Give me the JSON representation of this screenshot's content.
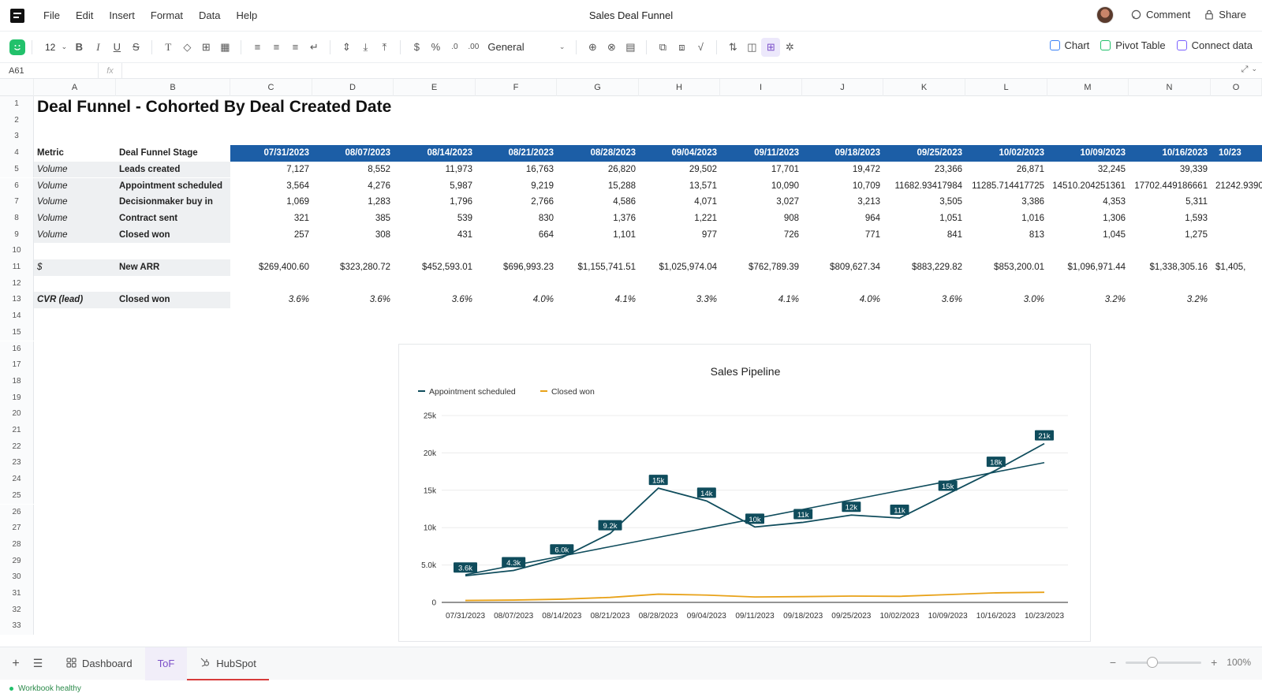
{
  "app": {
    "doc_title": "Sales Deal Funnel",
    "menu": [
      "File",
      "Edit",
      "Insert",
      "Format",
      "Data",
      "Help"
    ],
    "comment_label": "Comment",
    "share_label": "Share"
  },
  "toolbar": {
    "font_size": "12",
    "number_format": "General",
    "chart_label": "Chart",
    "pivot_label": "Pivot Table",
    "connect_label": "Connect data"
  },
  "formula_bar": {
    "cell_ref": "A61",
    "fx": "fx",
    "value": ""
  },
  "columns": [
    "A",
    "B",
    "C",
    "D",
    "E",
    "F",
    "G",
    "H",
    "I",
    "J",
    "K",
    "L",
    "M",
    "N",
    "O"
  ],
  "sheet": {
    "title": "Deal Funnel - Cohorted By Deal Created Date",
    "header_metric": "Metric",
    "header_stage": "Deal Funnel Stage",
    "dates": [
      "07/31/2023",
      "08/07/2023",
      "08/14/2023",
      "08/21/2023",
      "08/28/2023",
      "09/04/2023",
      "09/11/2023",
      "09/18/2023",
      "09/25/2023",
      "10/02/2023",
      "10/09/2023",
      "10/16/2023",
      "10/23"
    ],
    "rows": [
      {
        "row": 5,
        "metric": "Volume",
        "stage": "Leads created",
        "values": [
          "7,127",
          "8,552",
          "11,973",
          "16,763",
          "26,820",
          "29,502",
          "17,701",
          "19,472",
          "23,366",
          "26,871",
          "32,245",
          "39,339",
          ""
        ]
      },
      {
        "row": 6,
        "metric": "Volume",
        "stage": "Appointment scheduled",
        "values": [
          "3,564",
          "4,276",
          "5,987",
          "9,219",
          "15,288",
          "13,571",
          "10,090",
          "10,709",
          "11682.93417984",
          "11285.714417725",
          "14510.204251361",
          "17702.449186661",
          "21242.9390"
        ]
      },
      {
        "row": 7,
        "metric": "Volume",
        "stage": "Decisionmaker buy in",
        "values": [
          "1,069",
          "1,283",
          "1,796",
          "2,766",
          "4,586",
          "4,071",
          "3,027",
          "3,213",
          "3,505",
          "3,386",
          "4,353",
          "5,311",
          ""
        ]
      },
      {
        "row": 8,
        "metric": "Volume",
        "stage": "Contract sent",
        "values": [
          "321",
          "385",
          "539",
          "830",
          "1,376",
          "1,221",
          "908",
          "964",
          "1,051",
          "1,016",
          "1,306",
          "1,593",
          ""
        ]
      },
      {
        "row": 9,
        "metric": "Volume",
        "stage": "Closed won",
        "values": [
          "257",
          "308",
          "431",
          "664",
          "1,101",
          "977",
          "726",
          "771",
          "841",
          "813",
          "1,045",
          "1,275",
          ""
        ]
      },
      {
        "row": 11,
        "metric": "$",
        "stage": "New ARR",
        "values": [
          "$269,400.60",
          "$323,280.72",
          "$452,593.01",
          "$696,993.23",
          "$1,155,741.51",
          "$1,025,974.04",
          "$762,789.39",
          "$809,627.34",
          "$883,229.82",
          "$853,200.01",
          "$1,096,971.44",
          "$1,338,305.16",
          "$1,405,"
        ]
      },
      {
        "row": 13,
        "metric": "CVR (lead)",
        "stage": "Closed won",
        "values": [
          "3.6%",
          "3.6%",
          "3.6%",
          "4.0%",
          "4.1%",
          "3.3%",
          "4.1%",
          "4.0%",
          "3.6%",
          "3.0%",
          "3.2%",
          "3.2%",
          ""
        ]
      }
    ]
  },
  "chart_data": {
    "type": "line",
    "title": "Sales Pipeline",
    "x": [
      "07/31/2023",
      "08/07/2023",
      "08/14/2023",
      "08/21/2023",
      "08/28/2023",
      "09/04/2023",
      "09/11/2023",
      "09/18/2023",
      "09/25/2023",
      "10/02/2023",
      "10/09/2023",
      "10/16/2023",
      "10/23/2023"
    ],
    "ylim": [
      0,
      25000
    ],
    "yticks": [
      {
        "value": 0,
        "label": "0"
      },
      {
        "value": 5000,
        "label": "5.0k"
      },
      {
        "value": 10000,
        "label": "10k"
      },
      {
        "value": 15000,
        "label": "15k"
      },
      {
        "value": 20000,
        "label": "20k"
      },
      {
        "value": 25000,
        "label": "25k"
      }
    ],
    "legend_position": "top-left",
    "grid": true,
    "series": [
      {
        "name": "Appointment scheduled",
        "color": "#0f4c5c",
        "values": [
          3564,
          4276,
          5987,
          9219,
          15288,
          13571,
          10090,
          10709,
          11683,
          11286,
          14510,
          17702,
          21243
        ],
        "labels": [
          "3.6k",
          "4.3k",
          "6.0k",
          "9.2k",
          "15k",
          "14k",
          "10k",
          "11k",
          "12k",
          "11k",
          "15k",
          "18k",
          "21k"
        ],
        "trendline": [
          3700,
          4950,
          6200,
          7450,
          8700,
          9950,
          11200,
          12450,
          13700,
          14950,
          16200,
          17450,
          18700
        ]
      },
      {
        "name": "Closed won",
        "color": "#e8a219",
        "values": [
          257,
          308,
          431,
          664,
          1101,
          977,
          726,
          771,
          841,
          813,
          1045,
          1275,
          1350
        ]
      }
    ]
  },
  "tabs": [
    {
      "label": "Dashboard",
      "icon": "grid-icon"
    },
    {
      "label": "ToF",
      "icon": ""
    },
    {
      "label": "HubSpot",
      "icon": "hubspot-icon"
    }
  ],
  "zoom": {
    "label": "100%",
    "level": 0.35
  },
  "status": {
    "text": "Workbook healthy",
    "color": "#2b8a4a"
  }
}
